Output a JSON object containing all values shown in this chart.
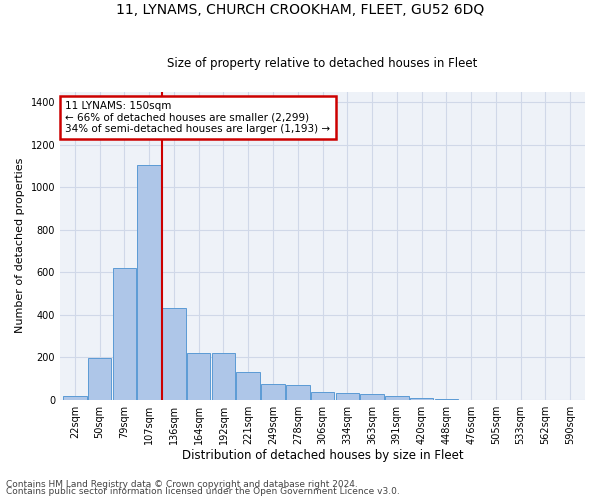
{
  "title": "11, LYNAMS, CHURCH CROOKHAM, FLEET, GU52 6DQ",
  "subtitle": "Size of property relative to detached houses in Fleet",
  "xlabel": "Distribution of detached houses by size in Fleet",
  "ylabel": "Number of detached properties",
  "categories": [
    "22sqm",
    "50sqm",
    "79sqm",
    "107sqm",
    "136sqm",
    "164sqm",
    "192sqm",
    "221sqm",
    "249sqm",
    "278sqm",
    "306sqm",
    "334sqm",
    "363sqm",
    "391sqm",
    "420sqm",
    "448sqm",
    "476sqm",
    "505sqm",
    "533sqm",
    "562sqm",
    "590sqm"
  ],
  "values": [
    18,
    195,
    620,
    1105,
    430,
    220,
    220,
    130,
    72,
    70,
    35,
    32,
    27,
    18,
    10,
    5,
    0,
    0,
    0,
    0,
    0
  ],
  "bar_color": "#aec6e8",
  "bar_edge_color": "#5b9bd5",
  "annotation_text_line1": "11 LYNAMS: 150sqm",
  "annotation_text_line2": "← 66% of detached houses are smaller (2,299)",
  "annotation_text_line3": "34% of semi-detached houses are larger (1,193) →",
  "annotation_box_color": "#ffffff",
  "annotation_box_edge_color": "#cc0000",
  "vline_color": "#cc0000",
  "vline_x": 3.5,
  "grid_color": "#d0d8e8",
  "bg_color": "#eef2f8",
  "ylim": [
    0,
    1450
  ],
  "yticks": [
    0,
    200,
    400,
    600,
    800,
    1000,
    1200,
    1400
  ],
  "footer_line1": "Contains HM Land Registry data © Crown copyright and database right 2024.",
  "footer_line2": "Contains public sector information licensed under the Open Government Licence v3.0.",
  "title_fontsize": 10,
  "subtitle_fontsize": 8.5,
  "xlabel_fontsize": 8.5,
  "ylabel_fontsize": 8,
  "tick_fontsize": 7,
  "annotation_fontsize": 7.5,
  "footer_fontsize": 6.5
}
